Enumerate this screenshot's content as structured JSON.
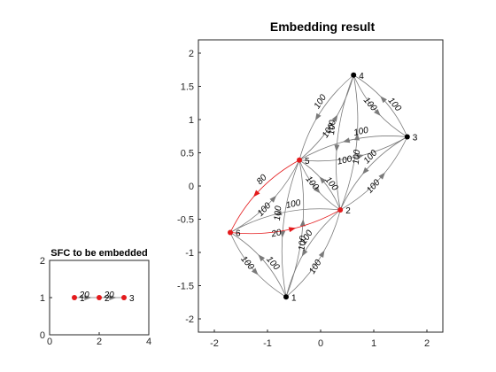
{
  "chart_data": [
    {
      "type": "graph",
      "title": "SFC to be embedded",
      "xlim": [
        0,
        4
      ],
      "ylim": [
        0,
        2
      ],
      "xticks": [
        0,
        2,
        4
      ],
      "yticks": [
        0,
        1,
        2
      ],
      "nodes": [
        {
          "label": "1",
          "x": 1,
          "y": 1,
          "color": "#e41a1c"
        },
        {
          "label": "2",
          "x": 2,
          "y": 1,
          "color": "#e41a1c"
        },
        {
          "label": "3",
          "x": 3,
          "y": 1,
          "color": "#e41a1c"
        }
      ],
      "edges": [
        {
          "from": "1",
          "to": "2",
          "weight": "20"
        },
        {
          "from": "2",
          "to": "3",
          "weight": "20"
        }
      ]
    },
    {
      "type": "graph",
      "title": "Embedding result",
      "xlim": [
        -2.3,
        2.3
      ],
      "ylim": [
        -2.2,
        2.2
      ],
      "xticks": [
        -2,
        -1,
        0,
        1,
        2
      ],
      "yticks": [
        -2,
        -1.5,
        -1,
        -0.5,
        0,
        0.5,
        1,
        1.5,
        2
      ],
      "nodes": [
        {
          "label": "1",
          "x": -0.65,
          "y": -1.67,
          "color": "#000000"
        },
        {
          "label": "2",
          "x": 0.37,
          "y": -0.36,
          "color": "#e41a1c"
        },
        {
          "label": "3",
          "x": 1.63,
          "y": 0.74,
          "color": "#000000"
        },
        {
          "label": "4",
          "x": 0.62,
          "y": 1.67,
          "color": "#000000"
        },
        {
          "label": "5",
          "x": -0.4,
          "y": 0.39,
          "color": "#e41a1c"
        },
        {
          "label": "6",
          "x": -1.7,
          "y": -0.7,
          "color": "#e41a1c"
        }
      ],
      "edges": [
        {
          "from": "1",
          "to": "2",
          "weight": "100",
          "highlight": false
        },
        {
          "from": "2",
          "to": "1",
          "weight": "100",
          "highlight": false
        },
        {
          "from": "1",
          "to": "6",
          "weight": "100",
          "highlight": false
        },
        {
          "from": "6",
          "to": "1",
          "weight": "100",
          "highlight": false
        },
        {
          "from": "1",
          "to": "5",
          "weight": "100",
          "highlight": false
        },
        {
          "from": "5",
          "to": "1",
          "weight": "100",
          "highlight": false
        },
        {
          "from": "2",
          "to": "3",
          "weight": "100",
          "highlight": false
        },
        {
          "from": "3",
          "to": "2",
          "weight": "100",
          "highlight": false
        },
        {
          "from": "2",
          "to": "4",
          "weight": "100",
          "highlight": false
        },
        {
          "from": "4",
          "to": "2",
          "weight": "100",
          "highlight": false
        },
        {
          "from": "2",
          "to": "5",
          "weight": "100",
          "highlight": false
        },
        {
          "from": "5",
          "to": "2",
          "weight": "100",
          "highlight": false
        },
        {
          "from": "2",
          "to": "6",
          "weight": "100",
          "highlight": false
        },
        {
          "from": "6",
          "to": "2",
          "weight": "20",
          "highlight": true
        },
        {
          "from": "3",
          "to": "4",
          "weight": "100",
          "highlight": false
        },
        {
          "from": "4",
          "to": "3",
          "weight": "100",
          "highlight": false
        },
        {
          "from": "3",
          "to": "5",
          "weight": "100",
          "highlight": false
        },
        {
          "from": "5",
          "to": "3",
          "weight": "100",
          "highlight": false
        },
        {
          "from": "4",
          "to": "5",
          "weight": "100",
          "highlight": false
        },
        {
          "from": "5",
          "to": "4",
          "weight": "100",
          "highlight": false
        },
        {
          "from": "5",
          "to": "6",
          "weight": "80",
          "highlight": true
        },
        {
          "from": "6",
          "to": "5",
          "weight": "100",
          "highlight": false
        }
      ]
    }
  ]
}
